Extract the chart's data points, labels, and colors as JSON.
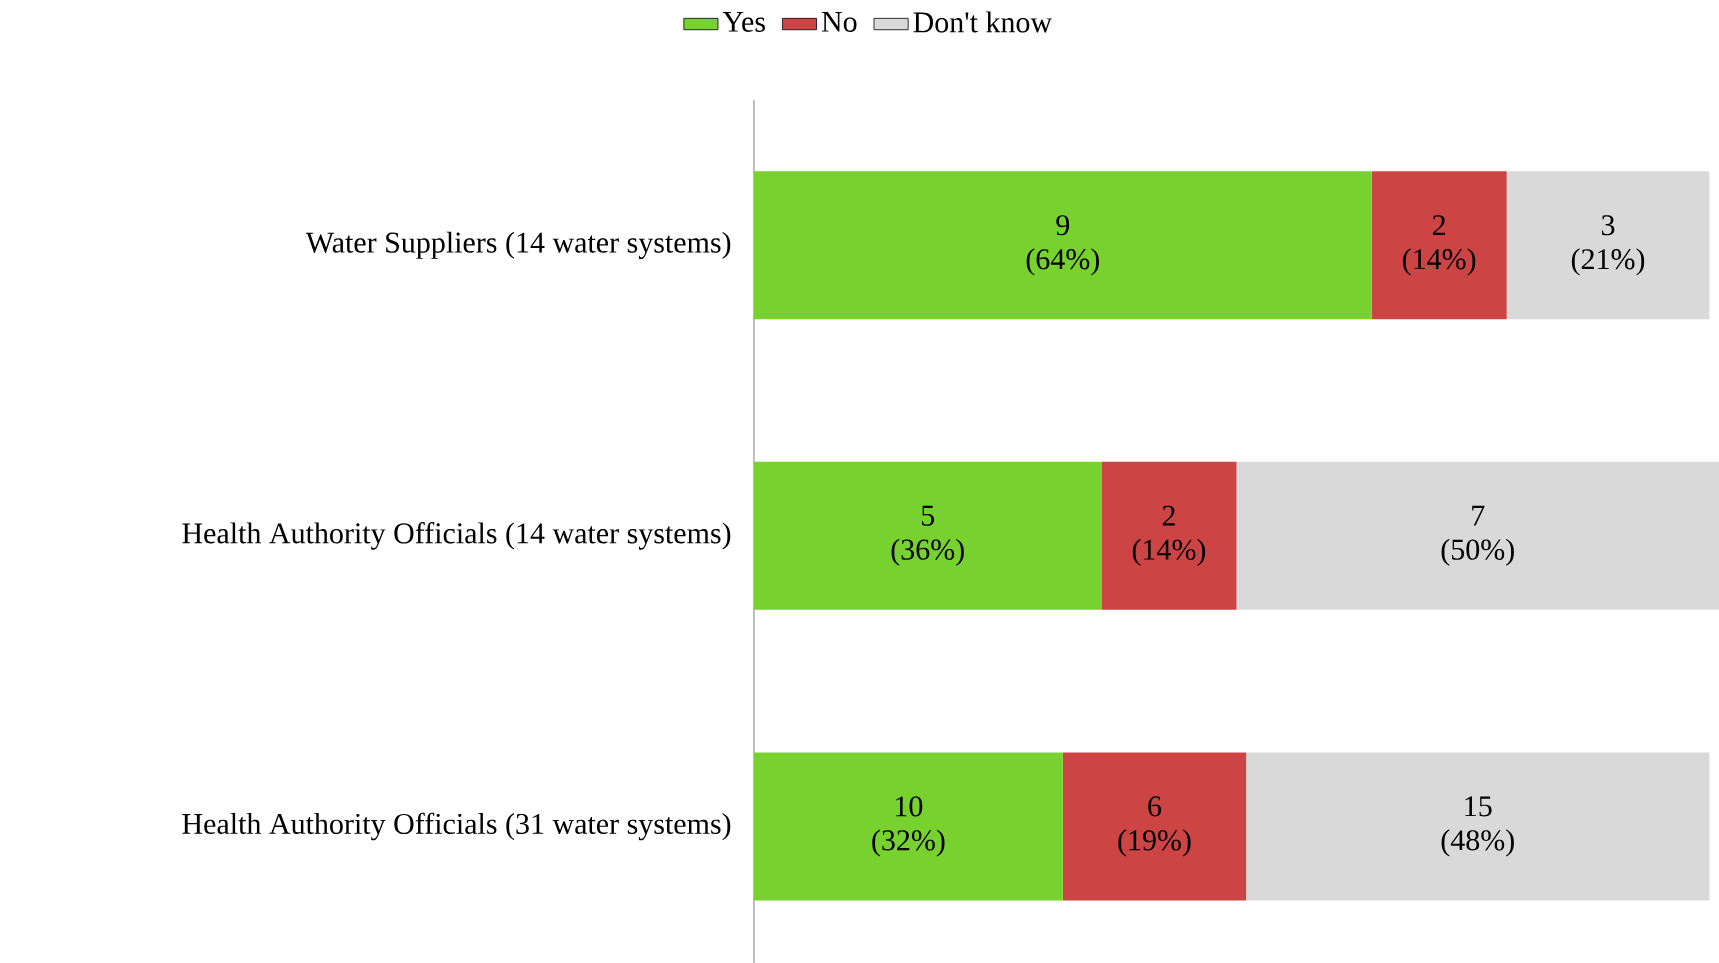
{
  "chart_data": {
    "type": "bar",
    "orientation": "horizontal",
    "stacked": true,
    "categories": [
      "Water Suppliers  (14 water systems)",
      "Health Authority Officials (14 water systems)",
      "Health Authority Officials (31 water systems)"
    ],
    "series": [
      {
        "name": "Yes",
        "color": "#77d22f",
        "values": [
          64,
          36,
          32
        ],
        "value_labels": [
          "9 (64%)",
          "5 (36%)",
          "10 (32%)"
        ]
      },
      {
        "name": "No",
        "color": "#cc4444",
        "values": [
          14,
          14,
          19
        ],
        "value_labels": [
          "2 (14%)",
          "2 (14%)",
          "6 (19%)"
        ]
      },
      {
        "name": "Don't know",
        "color": "#d9d9d9",
        "values": [
          21,
          50,
          48
        ],
        "value_labels": [
          "3 (21%)",
          "7 (50%)",
          "15 (48%)"
        ]
      }
    ],
    "xlim": [
      0,
      100
    ],
    "tick_labels": "y",
    "legend": "top"
  }
}
